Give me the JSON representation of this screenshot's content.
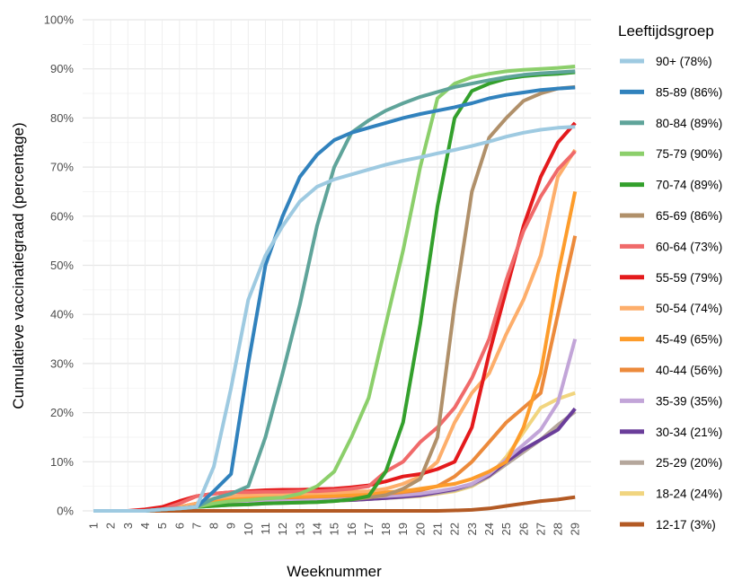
{
  "chart_data": {
    "type": "line",
    "xlabel": "Weeknummer",
    "ylabel": "Cumulatieve vaccinatiegraad (percentage)",
    "x": [
      1,
      2,
      3,
      4,
      5,
      6,
      7,
      8,
      9,
      10,
      11,
      12,
      13,
      14,
      15,
      16,
      17,
      18,
      19,
      20,
      21,
      22,
      23,
      24,
      25,
      26,
      27,
      28,
      29
    ],
    "y_ticks": [
      "0%",
      "10%",
      "20%",
      "30%",
      "40%",
      "50%",
      "60%",
      "70%",
      "80%",
      "90%",
      "100%"
    ],
    "ylim": [
      0,
      100
    ],
    "xlim": [
      1,
      29
    ],
    "grid": true,
    "legend": {
      "title": "Leeftijdsgroep",
      "position": "right"
    },
    "series": [
      {
        "name": "90+ (78%)",
        "color": "#9ecae1",
        "values": [
          0,
          0,
          0,
          0,
          0.3,
          0.5,
          0.8,
          9,
          25,
          43,
          52,
          58,
          63,
          66,
          67.5,
          68.5,
          69.5,
          70.5,
          71.3,
          72,
          72.8,
          73.5,
          74.3,
          75.2,
          76.2,
          77,
          77.6,
          78,
          78.2
        ]
      },
      {
        "name": "85-89 (86%)",
        "color": "#3182bd",
        "values": [
          0,
          0,
          0,
          0,
          0.3,
          0.5,
          0.8,
          4,
          7.5,
          30,
          50,
          60,
          68,
          72.5,
          75.5,
          77,
          78,
          79,
          80,
          80.8,
          81.5,
          82.2,
          83,
          84,
          84.7,
          85.2,
          85.7,
          86,
          86.2
        ]
      },
      {
        "name": "80-84 (89%)",
        "color": "#5fa49a",
        "values": [
          0,
          0,
          0,
          0,
          0.3,
          0.5,
          0.8,
          2.5,
          3.5,
          5,
          15,
          28,
          42,
          58,
          70,
          77,
          79.5,
          81.5,
          83,
          84.3,
          85.3,
          86.3,
          87,
          87.7,
          88.3,
          88.8,
          89.1,
          89.3,
          89.5
        ]
      },
      {
        "name": "75-79 (90%)",
        "color": "#8ccf6b",
        "values": [
          0,
          0,
          0,
          0,
          0.3,
          0.5,
          0.8,
          1.5,
          2,
          2.2,
          2.5,
          2.7,
          3.5,
          5,
          8,
          15,
          23,
          38,
          53,
          70,
          84,
          87,
          88.3,
          89,
          89.5,
          89.8,
          90,
          90.2,
          90.5
        ]
      },
      {
        "name": "70-74 (89%)",
        "color": "#33a02c",
        "values": [
          0,
          0,
          0,
          0,
          0.3,
          0.5,
          0.8,
          1,
          1.2,
          1.3,
          1.5,
          1.6,
          1.7,
          1.8,
          2,
          2.3,
          3,
          8,
          18,
          38,
          62,
          80,
          85.5,
          87,
          88,
          88.5,
          88.8,
          89,
          89.3
        ]
      },
      {
        "name": "65-69 (86%)",
        "color": "#b0906a",
        "values": [
          0,
          0,
          0,
          0,
          0.3,
          0.5,
          0.8,
          1,
          1.2,
          1.3,
          1.5,
          1.6,
          1.7,
          1.8,
          2,
          2.3,
          2.7,
          3.2,
          4.5,
          6.5,
          15,
          42,
          65,
          76,
          80,
          83.5,
          85,
          86,
          86.3
        ]
      },
      {
        "name": "60-64 (73%)",
        "color": "#f06a6a",
        "values": [
          0,
          0,
          0,
          0,
          0.3,
          1.5,
          3,
          3.5,
          3.8,
          3.8,
          3.9,
          3.9,
          4,
          4,
          4.2,
          4.5,
          5,
          8,
          10,
          14,
          17,
          21,
          27,
          35,
          47,
          57,
          64,
          69.5,
          73.2
        ]
      },
      {
        "name": "55-59 (79%)",
        "color": "#e41a1c",
        "values": [
          0,
          0,
          0,
          0.3,
          0.8,
          2,
          3,
          3.5,
          3.8,
          4,
          4.2,
          4.3,
          4.3,
          4.4,
          4.5,
          4.8,
          5.2,
          6,
          7,
          7.5,
          8.5,
          10,
          17,
          32,
          45,
          58,
          68,
          75,
          79
        ]
      },
      {
        "name": "50-54 (74%)",
        "color": "#fdae6b",
        "values": [
          0,
          0,
          0,
          0,
          0.3,
          0.8,
          1.5,
          2.5,
          3,
          3.2,
          3.3,
          3.4,
          3.5,
          3.6,
          3.7,
          3.9,
          4,
          4.5,
          5.5,
          7,
          10,
          18,
          24,
          28,
          36,
          43,
          52,
          68,
          73.5
        ]
      },
      {
        "name": "45-49 (65%)",
        "color": "#fd9c2b",
        "values": [
          0,
          0,
          0,
          0,
          0.3,
          0.8,
          1.5,
          2,
          2.5,
          2.7,
          2.8,
          2.9,
          3,
          3,
          3.1,
          3.3,
          3.5,
          3.8,
          4,
          4.5,
          5,
          5.5,
          6.5,
          8,
          10,
          17,
          28,
          48,
          65
        ]
      },
      {
        "name": "40-44 (56%)",
        "color": "#ec8a3b",
        "values": [
          0,
          0,
          0,
          0,
          0.3,
          0.8,
          1.5,
          2,
          2.3,
          2.5,
          2.6,
          2.7,
          2.8,
          2.9,
          3,
          3.1,
          3.3,
          3.5,
          3.8,
          4.2,
          5,
          7,
          10,
          14,
          18,
          21,
          24,
          40,
          56
        ]
      },
      {
        "name": "35-39 (35%)",
        "color": "#c2a5d8",
        "values": [
          0,
          0,
          0,
          0,
          0.3,
          0.5,
          1,
          1.5,
          1.8,
          2,
          2.1,
          2.2,
          2.3,
          2.4,
          2.5,
          2.6,
          2.8,
          3,
          3.2,
          3.5,
          4,
          4.6,
          5.5,
          7.5,
          10.5,
          13.5,
          16.5,
          22,
          35
        ]
      },
      {
        "name": "30-34 (21%)",
        "color": "#6a3d9a",
        "values": [
          0,
          0,
          0,
          0,
          0.3,
          0.5,
          0.8,
          1.2,
          1.5,
          1.6,
          1.7,
          1.8,
          1.9,
          2,
          2.1,
          2.2,
          2.4,
          2.6,
          2.9,
          3.2,
          3.8,
          4.4,
          5.5,
          7.2,
          10,
          12.5,
          14.5,
          16.5,
          20.8
        ]
      },
      {
        "name": "25-29 (20%)",
        "color": "#b5a79c",
        "values": [
          0,
          0,
          0,
          0,
          0.3,
          0.5,
          0.8,
          1.2,
          1.5,
          1.6,
          1.7,
          1.8,
          1.9,
          2,
          2.1,
          2.2,
          2.4,
          2.6,
          2.8,
          3.1,
          3.6,
          4.2,
          5.2,
          7,
          9.5,
          12,
          14.5,
          17.5,
          20.2
        ]
      },
      {
        "name": "18-24 (24%)",
        "color": "#f1d57f",
        "values": [
          0,
          0,
          0,
          0,
          0.3,
          0.5,
          0.8,
          1.2,
          1.5,
          1.6,
          1.7,
          1.8,
          1.9,
          2,
          2.1,
          2.2,
          2.4,
          2.6,
          2.8,
          3,
          3.5,
          4,
          5,
          7,
          11,
          16,
          21,
          22.8,
          24
        ]
      },
      {
        "name": "12-17 (3%)",
        "color": "#b35a24",
        "values": [
          0,
          0,
          0,
          0,
          0,
          0,
          0,
          0,
          0,
          0,
          0,
          0,
          0,
          0,
          0,
          0,
          0,
          0,
          0,
          0,
          0,
          0.1,
          0.2,
          0.5,
          1,
          1.5,
          2,
          2.3,
          2.8
        ]
      }
    ]
  }
}
